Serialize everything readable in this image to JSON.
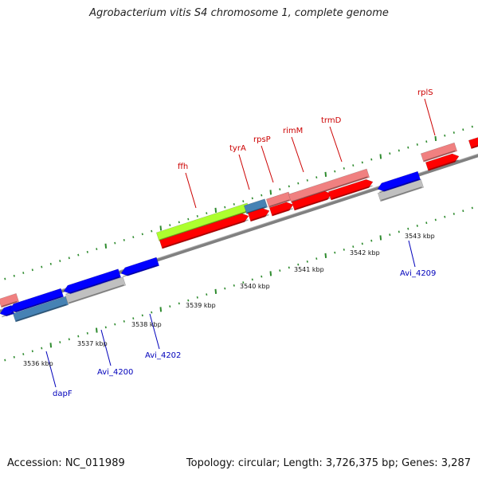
{
  "title": "Agrobacterium vitis S4 chromosome 1, complete genome",
  "footer": {
    "accession": "Accession: NC_011989",
    "summary": "Topology: circular; Length: 3,726,375 bp; Genes: 3,287"
  },
  "colors": {
    "backbone": "#808080",
    "tick": "#2e8b2e",
    "gene_label_fwd": "#cc0000",
    "gene_label_rev": "#0000bb",
    "cds_fwd": "#ff0000",
    "cds_rev": "#0000ff",
    "feature_fwd": "#f08080",
    "feature_rev": "#c0c0c0",
    "rna": "#adff2f",
    "misc": "#4682b4"
  },
  "scale_labels": [
    "3536 kbp",
    "3537 kbp",
    "3538 kbp",
    "3539 kbp",
    "3540 kbp",
    "3541 kbp",
    "3542 kbp",
    "3543 kbp"
  ],
  "gene_labels": [
    {
      "text": "ffh",
      "strand": "fwd"
    },
    {
      "text": "tyrA",
      "strand": "fwd"
    },
    {
      "text": "rpsP",
      "strand": "fwd"
    },
    {
      "text": "rimM",
      "strand": "fwd"
    },
    {
      "text": "trmD",
      "strand": "fwd"
    },
    {
      "text": "rplS",
      "strand": "fwd"
    },
    {
      "text": "dapF",
      "strand": "rev"
    },
    {
      "text": "Avi_4200",
      "strand": "rev"
    },
    {
      "text": "Avi_4202",
      "strand": "rev"
    },
    {
      "text": "Avi_4209",
      "strand": "rev"
    }
  ]
}
